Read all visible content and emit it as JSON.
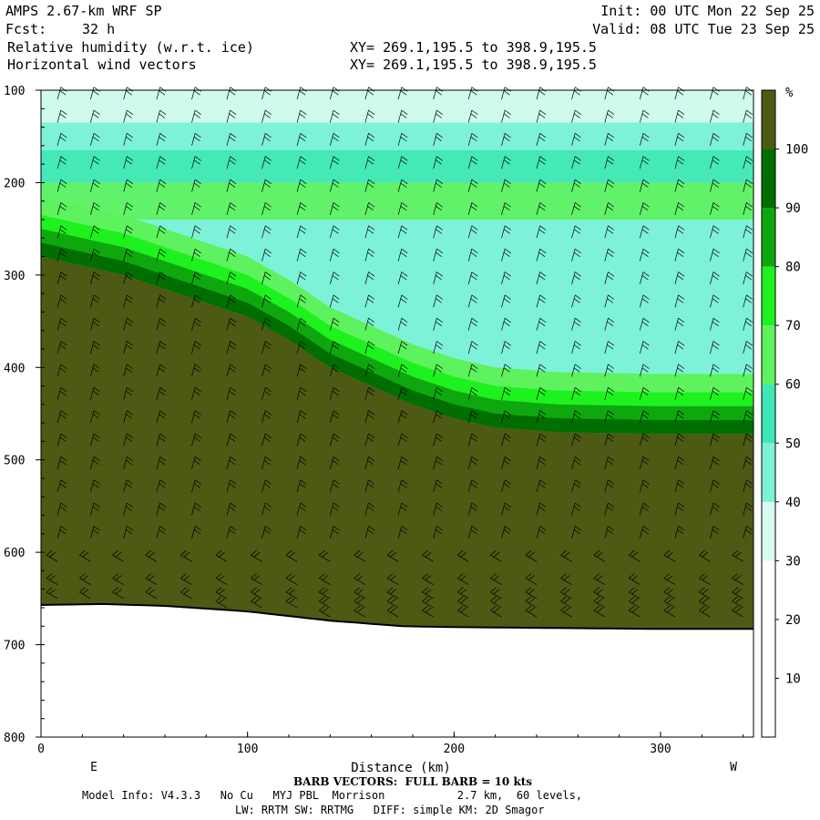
{
  "header": {
    "model": "AMPS 2.67-km WRF SP",
    "init": "Init: 00 UTC Mon 22 Sep 25",
    "fcst_label": "Fcst:",
    "fcst_value": "32 h",
    "valid": "Valid: 08 UTC Tue 23 Sep 25",
    "field1": "Relative humidity (w.r.t. ice)",
    "field2": "Horizontal wind vectors",
    "xy1": "XY= 269.1,195.5 to 398.9,195.5",
    "xy2": "XY= 269.1,195.5 to 398.9,195.5"
  },
  "footer": {
    "barb_note": "BARB VECTORS:  FULL BARB = 10 kts",
    "model_info": "Model Info: V4.3.3   No Cu   MYJ PBL  Morrison           2.7 km,  60 levels,",
    "physics": "LW: RRTM SW: RRTMG   DIFF: simple KM: 2D Smagor"
  },
  "chart_data": {
    "type": "heatmap",
    "title": "Relative humidity (w.r.t. ice)",
    "xlabel": "Distance (km)",
    "ylabel": "",
    "xlim": [
      0,
      345
    ],
    "ylim": [
      100,
      800
    ],
    "y_inverted": true,
    "x_ticks": [
      0,
      100,
      200,
      300
    ],
    "y_ticks": [
      100,
      200,
      300,
      400,
      500,
      600,
      700,
      800
    ],
    "x_end_labels": {
      "left": "E",
      "right": "W"
    },
    "colorbar": {
      "unit": "%",
      "levels": [
        10,
        20,
        30,
        40,
        50,
        60,
        70,
        80,
        90,
        100
      ],
      "colors": [
        "#ffffff",
        "#ffffff",
        "#ffffff",
        "#d8fcf0",
        "#7ef2d8",
        "#3ee8b4",
        "#5ef25e",
        "#1ef21e",
        "#0ea80e",
        "#006e00",
        "#4c5a14"
      ]
    },
    "palette": {
      "lt30": "#ffffff",
      "r30_40": "#d8fcf0",
      "r40_50": "#7ef2d8",
      "r50_60": "#3ee8b4",
      "r60_70": "#5ef25e",
      "r70_80": "#1ef21e",
      "r80_90": "#0ea80e",
      "r90_100": "#006e00",
      "gt100": "#4c5a14"
    },
    "terrain_pressure": [
      [
        0,
        657
      ],
      [
        30,
        656
      ],
      [
        60,
        658
      ],
      [
        100,
        664
      ],
      [
        140,
        674
      ],
      [
        175,
        680
      ],
      [
        200,
        681
      ],
      [
        250,
        682
      ],
      [
        300,
        683
      ],
      [
        345,
        683
      ]
    ],
    "saturated_top_pressure": [
      [
        0,
        280
      ],
      [
        20,
        290
      ],
      [
        40,
        300
      ],
      [
        60,
        315
      ],
      [
        80,
        330
      ],
      [
        100,
        345
      ],
      [
        120,
        370
      ],
      [
        140,
        400
      ],
      [
        160,
        420
      ],
      [
        180,
        440
      ],
      [
        200,
        455
      ],
      [
        220,
        465
      ],
      [
        250,
        470
      ],
      [
        300,
        472
      ],
      [
        345,
        472
      ]
    ],
    "rh_bands_pressure": [
      {
        "rh": "90-100",
        "offset": 15
      },
      {
        "rh": "80-90",
        "offset": 30
      },
      {
        "rh": "70-80",
        "offset": 45
      },
      {
        "rh": "60-70",
        "offset": 65
      }
    ],
    "upper_layers": [
      {
        "p_top": 100,
        "p_bot": 135,
        "rh": "30-40"
      },
      {
        "p_top": 135,
        "p_bot": 165,
        "rh": "40-50"
      },
      {
        "p_top": 165,
        "p_bot": 200,
        "rh": "50-60"
      },
      {
        "p_top": 200,
        "p_bot": 240,
        "rh": "60-70"
      }
    ],
    "barb_columns_km": [
      8,
      24,
      40,
      56,
      73,
      90,
      107,
      124,
      140,
      157,
      173,
      190,
      207,
      223,
      240,
      257,
      273,
      290,
      307,
      324,
      340
    ],
    "barb_levels_hpa": [
      110,
      135,
      160,
      185,
      210,
      235,
      260,
      285,
      310,
      335,
      360,
      385,
      410,
      435,
      460,
      485,
      510,
      535,
      560,
      585,
      610,
      635,
      650,
      660,
      670
    ]
  }
}
